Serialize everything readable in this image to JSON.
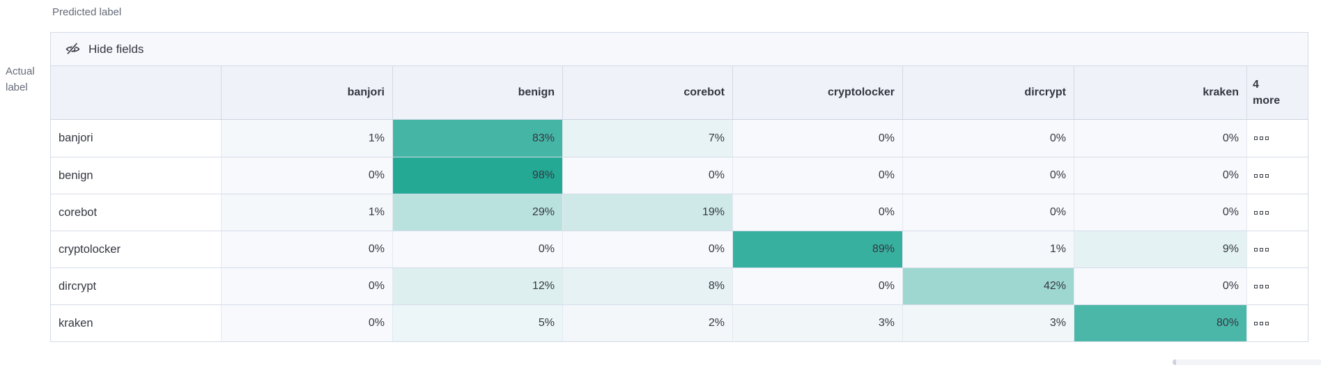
{
  "axis": {
    "predicted_label": "Predicted label",
    "actual_label_line1": "Actual",
    "actual_label_line2": "label"
  },
  "toolbar": {
    "hide_fields_label": "Hide fields"
  },
  "matrix": {
    "columns": [
      "banjori",
      "benign",
      "corebot",
      "cryptolocker",
      "dircrypt",
      "kraken"
    ],
    "more_column": {
      "count": "4",
      "label": "more",
      "cell_icon": "three-small-squares"
    },
    "rows": [
      {
        "label": "banjori",
        "values": [
          1,
          83,
          7,
          0,
          0,
          0
        ]
      },
      {
        "label": "benign",
        "values": [
          0,
          98,
          0,
          0,
          0,
          0
        ]
      },
      {
        "label": "corebot",
        "values": [
          1,
          29,
          19,
          0,
          0,
          0
        ]
      },
      {
        "label": "cryptolocker",
        "values": [
          0,
          0,
          0,
          89,
          1,
          9
        ]
      },
      {
        "label": "dircrypt",
        "values": [
          0,
          12,
          8,
          0,
          42,
          0
        ]
      },
      {
        "label": "kraken",
        "values": [
          0,
          5,
          2,
          3,
          3,
          80
        ]
      }
    ],
    "value_suffix": "%"
  },
  "colors": {
    "heat_low": "#F7F9FC",
    "heat_high": "#20A793",
    "border": "#D3DAE6",
    "header_bg": "#EFF2F9",
    "toolbar_bg": "#F7F8FC",
    "text": "#343741",
    "muted": "#646A77"
  },
  "chart_data": {
    "type": "heatmap",
    "x_axis_label": "Predicted label",
    "y_axis_label": "Actual label",
    "x_categories": [
      "banjori",
      "benign",
      "corebot",
      "cryptolocker",
      "dircrypt",
      "kraken"
    ],
    "y_categories": [
      "banjori",
      "benign",
      "corebot",
      "cryptolocker",
      "dircrypt",
      "kraken"
    ],
    "values_percent": [
      [
        1,
        83,
        7,
        0,
        0,
        0
      ],
      [
        0,
        98,
        0,
        0,
        0,
        0
      ],
      [
        1,
        29,
        19,
        0,
        0,
        0
      ],
      [
        0,
        0,
        0,
        89,
        1,
        9
      ],
      [
        0,
        12,
        8,
        0,
        42,
        0
      ],
      [
        0,
        5,
        2,
        3,
        3,
        80
      ]
    ],
    "hidden_columns_badge": "4 more",
    "color_scale": {
      "low": "#F7F9FC",
      "high": "#20A793"
    },
    "legend": "off"
  }
}
